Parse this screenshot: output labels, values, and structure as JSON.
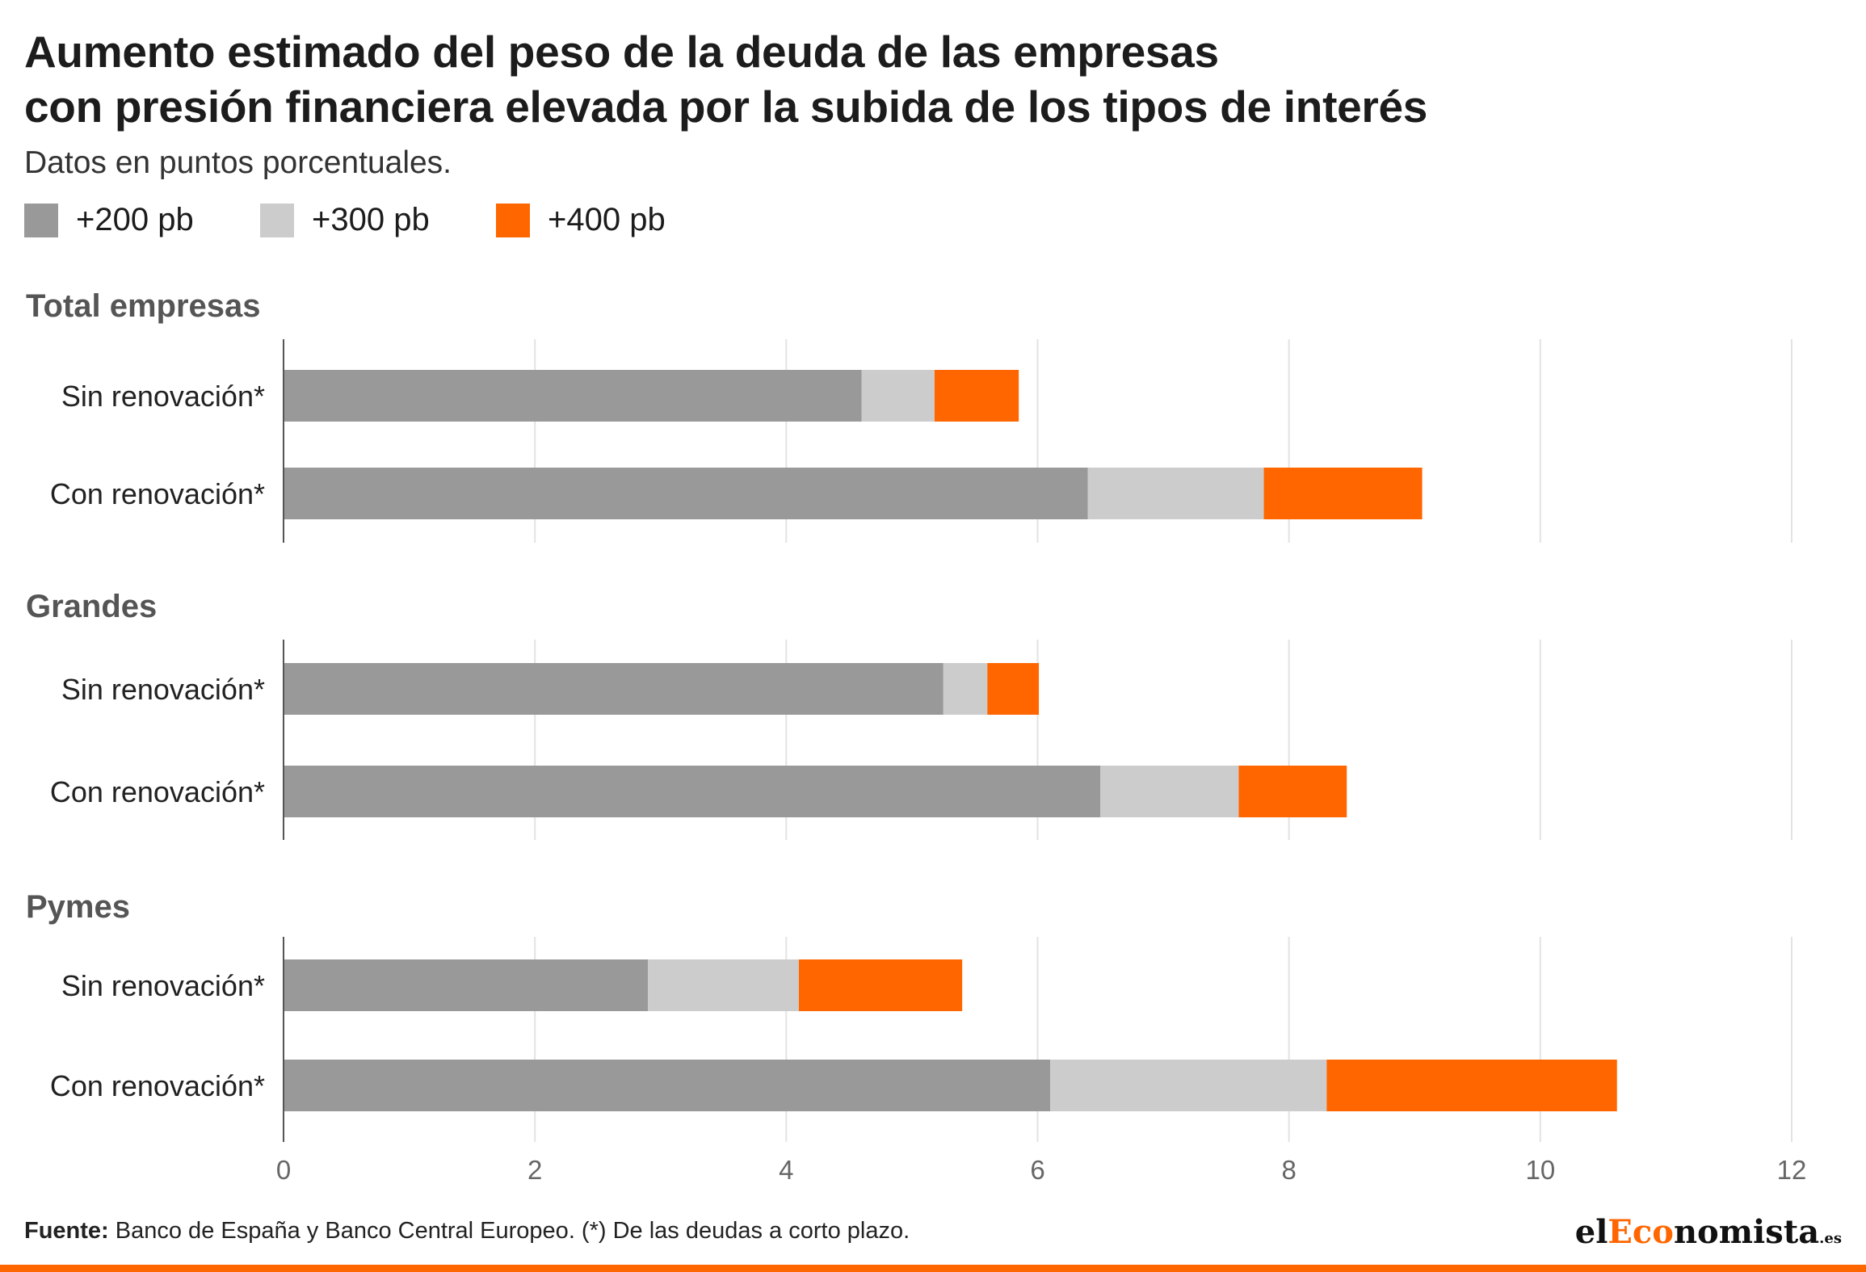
{
  "title_line1": "Aumento estimado del peso de la deuda de las empresas",
  "title_line2": "con presión financiera elevada por la subida de los tipos de interés",
  "subtitle": "Datos en puntos porcentuales.",
  "footer": {
    "source_label": "Fuente:",
    "source_text": " Banco de España y Banco Central Europeo. (*) De las deudas a corto plazo."
  },
  "logo": {
    "part1": "el",
    "part2": "Eco",
    "part3": "nomista",
    "part4": ".es"
  },
  "colors": {
    "accent": "#ff6600",
    "dark_gray": "#999999",
    "light_gray": "#cccccc",
    "grid": "#e3e3e3"
  },
  "chart_data": {
    "type": "bar",
    "orientation": "horizontal",
    "stacked": true,
    "legend_position": "top-left",
    "grid": true,
    "xlim": [
      0,
      12
    ],
    "x_ticks": [
      0,
      2,
      4,
      6,
      8,
      10,
      12
    ],
    "series": [
      {
        "name": "+200 pb",
        "color": "#999999"
      },
      {
        "name": "+300 pb",
        "color": "#cccccc"
      },
      {
        "name": "+400 pb",
        "color": "#ff6600"
      }
    ],
    "panels": [
      {
        "title": "Total empresas",
        "categories": [
          "Sin renovación*",
          "Con renovación*"
        ],
        "values": [
          [
            4.6,
            0.58,
            0.67
          ],
          [
            6.4,
            1.4,
            1.26
          ]
        ]
      },
      {
        "title": "Grandes",
        "categories": [
          "Sin renovación*",
          "Con renovación*"
        ],
        "values": [
          [
            5.25,
            0.35,
            0.41
          ],
          [
            6.5,
            1.1,
            0.86
          ]
        ]
      },
      {
        "title": "Pymes",
        "categories": [
          "Sin renovación*",
          "Con renovación*"
        ],
        "values": [
          [
            2.9,
            1.2,
            1.3
          ],
          [
            6.1,
            2.2,
            2.31
          ]
        ]
      }
    ]
  }
}
